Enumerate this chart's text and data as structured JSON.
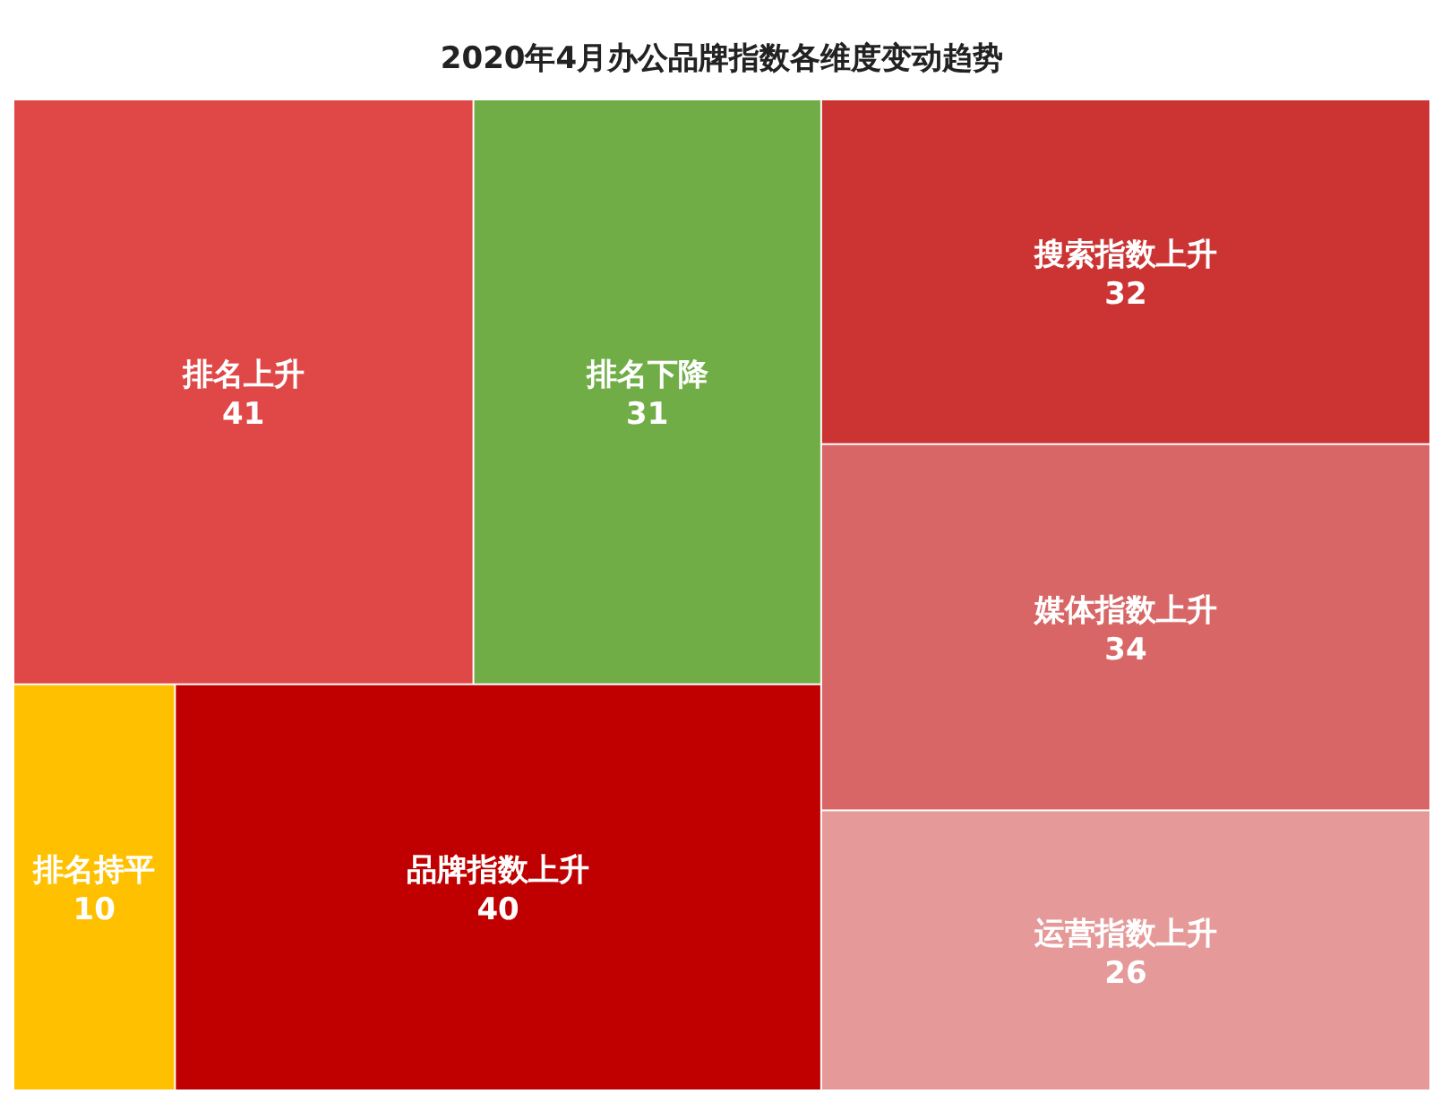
{
  "chart_data": {
    "type": "other",
    "title": "2020年4月办公品牌指数各维度变动趋势",
    "categories": [
      "排名上升",
      "排名下降",
      "排名持平",
      "品牌指数上升",
      "搜索指数上升",
      "媒体指数上升",
      "运营指数上升"
    ],
    "values": [
      41,
      31,
      10,
      40,
      32,
      34,
      26
    ],
    "colors": [
      "#e04848",
      "#70ad47",
      "#ffc000",
      "#c00000",
      "#cc3333",
      "#d96666",
      "#e59999"
    ],
    "data_labels": true
  }
}
